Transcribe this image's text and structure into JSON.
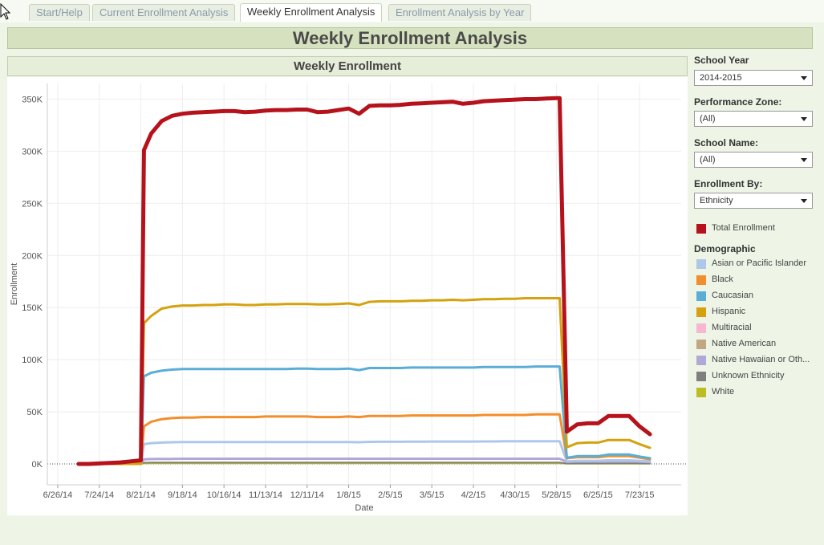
{
  "tabs": [
    {
      "label": "Start/Help",
      "active": false
    },
    {
      "label": "Current Enrollment Analysis",
      "active": false
    },
    {
      "label": "Weekly Enrollment Analysis",
      "active": true
    },
    {
      "label": "Enrollment Analysis by Year",
      "active": false
    }
  ],
  "page_title": "Weekly Enrollment Analysis",
  "chart_title": "Weekly Enrollment",
  "filters": {
    "school_year": {
      "label": "School Year",
      "value": "2014-2015"
    },
    "performance_zone": {
      "label": "Performance Zone:",
      "value": "(All)"
    },
    "school_name": {
      "label": "School Name:",
      "value": "(All)"
    },
    "enrollment_by": {
      "label": "Enrollment By:",
      "value": "Ethnicity"
    }
  },
  "legend": {
    "total": {
      "label": "Total Enrollment",
      "color": "#b5121b"
    },
    "title": "Demographic",
    "items": [
      {
        "label": "Asian or Pacific Islander",
        "color": "#aec7e8"
      },
      {
        "label": "Black",
        "color": "#f28e2b"
      },
      {
        "label": "Caucasian",
        "color": "#5aaed6"
      },
      {
        "label": "Hispanic",
        "color": "#d4a20f"
      },
      {
        "label": "Multiracial",
        "color": "#f7b6d2"
      },
      {
        "label": "Native American",
        "color": "#c2a782"
      },
      {
        "label": "Native Hawaiian or Oth...",
        "color": "#b0a8d6"
      },
      {
        "label": "Unknown Ethnicity",
        "color": "#7f7f7f"
      },
      {
        "label": "White",
        "color": "#bcbd22"
      }
    ]
  },
  "chart_data": {
    "type": "line",
    "xlabel": "Date",
    "ylabel": "Enrollment",
    "ylim": [
      -20000,
      365000
    ],
    "y_ticks": [
      {
        "value": 0,
        "label": "0K"
      },
      {
        "value": 50000,
        "label": "50K"
      },
      {
        "value": 100000,
        "label": "100K"
      },
      {
        "value": 150000,
        "label": "150K"
      },
      {
        "value": 200000,
        "label": "200K"
      },
      {
        "value": 250000,
        "label": "250K"
      },
      {
        "value": 300000,
        "label": "300K"
      },
      {
        "value": 350000,
        "label": "350K"
      }
    ],
    "x_ticks": [
      "6/26/14",
      "7/24/14",
      "8/21/14",
      "9/18/14",
      "10/16/14",
      "11/13/14",
      "12/11/14",
      "1/8/15",
      "2/5/15",
      "3/5/15",
      "4/2/15",
      "4/30/15",
      "5/28/15",
      "6/25/15",
      "7/23/15"
    ],
    "x_tick_index": [
      0,
      4,
      8,
      12,
      16,
      20,
      24,
      28,
      32,
      36,
      40,
      44,
      48,
      52,
      56
    ],
    "x_range": [
      -1,
      60
    ],
    "grid": true,
    "x": [
      2,
      3,
      4,
      5,
      6,
      7,
      8,
      8.3,
      9,
      10,
      11,
      12,
      13,
      14,
      15,
      16,
      17,
      18,
      19,
      20,
      21,
      22,
      23,
      24,
      25,
      26,
      27,
      28,
      29,
      30,
      31,
      32,
      33,
      34,
      35,
      36,
      37,
      38,
      39,
      40,
      41,
      42,
      43,
      44,
      45,
      46,
      47,
      48,
      48.3,
      49,
      50,
      51,
      52,
      53,
      54,
      55,
      56,
      57,
      58
    ],
    "series": [
      {
        "name": "Total Enrollment",
        "color": "#b5121b",
        "width": 5,
        "values": [
          0,
          0,
          500,
          1000,
          1500,
          2500,
          3500,
          301000,
          317000,
          329000,
          334000,
          336000,
          337000,
          337500,
          338000,
          338500,
          338500,
          337500,
          338000,
          339000,
          339500,
          339500,
          340000,
          340000,
          337500,
          338000,
          339500,
          341000,
          336000,
          343500,
          344000,
          344000,
          344500,
          345500,
          346000,
          346500,
          347000,
          347500,
          345500,
          346500,
          348000,
          348500,
          349000,
          349500,
          350000,
          350000,
          350500,
          351000,
          351000,
          31000,
          38000,
          39000,
          39000,
          46000,
          46000,
          46000,
          36000,
          28500,
          null
        ],
        "fix": true
      },
      {
        "name": "Hispanic",
        "color": "#d4a20f",
        "width": 3,
        "values": [
          0,
          0,
          0,
          0,
          0,
          0,
          0,
          135000,
          142000,
          149000,
          151000,
          152000,
          152000,
          152500,
          152500,
          153000,
          153000,
          152500,
          152500,
          153000,
          153000,
          153500,
          153500,
          153500,
          153000,
          153000,
          153500,
          154000,
          152500,
          155500,
          156000,
          156000,
          156000,
          156500,
          156500,
          157000,
          157000,
          157500,
          157000,
          157500,
          158000,
          158000,
          158500,
          158500,
          159000,
          159000,
          159000,
          159000,
          159000,
          16000,
          20000,
          20500,
          20500,
          23000,
          23000,
          23000,
          19000,
          15500,
          null
        ]
      },
      {
        "name": "Caucasian",
        "color": "#5aaed6",
        "width": 3,
        "values": [
          0,
          0,
          0,
          0,
          0,
          0,
          0,
          84000,
          87500,
          89500,
          90500,
          91000,
          91000,
          91000,
          91000,
          91000,
          91000,
          91000,
          91000,
          91000,
          91000,
          91000,
          91500,
          91500,
          91000,
          91000,
          91000,
          91500,
          90000,
          92000,
          92000,
          92000,
          92000,
          92500,
          92500,
          92500,
          92500,
          92500,
          92500,
          92500,
          93000,
          93000,
          93000,
          93000,
          93000,
          93500,
          93500,
          93500,
          93500,
          6000,
          7500,
          7500,
          7500,
          9000,
          9000,
          9000,
          7000,
          5500,
          null
        ]
      },
      {
        "name": "Black",
        "color": "#f28e2b",
        "width": 3,
        "values": [
          0,
          0,
          500,
          700,
          800,
          1000,
          1500,
          36000,
          40500,
          43000,
          44000,
          44500,
          44500,
          45000,
          45000,
          45000,
          45000,
          45000,
          45000,
          45500,
          45500,
          45500,
          45500,
          45500,
          45000,
          45000,
          45000,
          45500,
          45000,
          46000,
          46000,
          46000,
          46000,
          46500,
          46500,
          46500,
          46500,
          46500,
          46500,
          46500,
          47000,
          47000,
          47000,
          47000,
          47000,
          47500,
          47500,
          47500,
          47500,
          5500,
          6500,
          6500,
          6500,
          7500,
          7500,
          7500,
          6000,
          4500,
          null
        ]
      },
      {
        "name": "Asian or Pacific Islander",
        "color": "#aec7e8",
        "width": 3,
        "values": [
          0,
          0,
          0,
          0,
          0,
          0,
          0,
          19000,
          20000,
          20500,
          20800,
          21000,
          21000,
          21000,
          21000,
          21000,
          21000,
          21000,
          21000,
          21000,
          21000,
          21000,
          21000,
          21000,
          21000,
          21000,
          21000,
          21000,
          20800,
          21200,
          21300,
          21300,
          21300,
          21400,
          21400,
          21500,
          21500,
          21500,
          21500,
          21500,
          21600,
          21600,
          21700,
          21700,
          21700,
          21800,
          21800,
          21800,
          21800,
          2500,
          3000,
          3000,
          3000,
          3500,
          3500,
          3500,
          3000,
          2500,
          null
        ]
      },
      {
        "name": "Native Hawaiian or Oth...",
        "color": "#b0a8d6",
        "width": 3,
        "values": [
          0,
          0,
          0,
          0,
          0,
          0,
          0,
          4500,
          4700,
          4800,
          4900,
          5000,
          5000,
          5000,
          5000,
          5000,
          5000,
          5000,
          5000,
          5000,
          5000,
          5000,
          5000,
          5000,
          5000,
          5000,
          5000,
          5000,
          5000,
          5000,
          5000,
          5000,
          5000,
          5000,
          5000,
          5000,
          5000,
          5000,
          5000,
          5000,
          5000,
          5000,
          5000,
          5000,
          5000,
          5000,
          5000,
          5000,
          5000,
          2000,
          2300,
          2300,
          2300,
          2600,
          2600,
          2600,
          2200,
          1800,
          null
        ]
      },
      {
        "name": "Unknown Ethnicity",
        "color": "#7f7f7f",
        "width": 2,
        "values": [
          0,
          0,
          0,
          0,
          0,
          0,
          0,
          1200,
          1300,
          1300,
          1300,
          1300,
          1300,
          1300,
          1300,
          1300,
          1300,
          1300,
          1300,
          1300,
          1300,
          1300,
          1300,
          1300,
          1300,
          1300,
          1300,
          1300,
          1300,
          1300,
          1300,
          1300,
          1300,
          1300,
          1300,
          1300,
          1300,
          1300,
          1300,
          1300,
          1300,
          1300,
          1300,
          1300,
          1300,
          1300,
          1300,
          1300,
          1300,
          400,
          500,
          500,
          500,
          600,
          600,
          600,
          500,
          400,
          null
        ]
      },
      {
        "name": "White",
        "color": "#bcbd22",
        "width": 2,
        "values": [
          0,
          0,
          0,
          0,
          0,
          0,
          0,
          500,
          600,
          600,
          600,
          600,
          600,
          600,
          600,
          600,
          600,
          600,
          600,
          600,
          600,
          600,
          600,
          600,
          600,
          600,
          600,
          600,
          600,
          600,
          600,
          600,
          600,
          600,
          600,
          600,
          600,
          600,
          600,
          600,
          600,
          600,
          600,
          600,
          600,
          600,
          600,
          600,
          600,
          200,
          200,
          200,
          200,
          200,
          200,
          200,
          200,
          200,
          null
        ]
      }
    ]
  }
}
